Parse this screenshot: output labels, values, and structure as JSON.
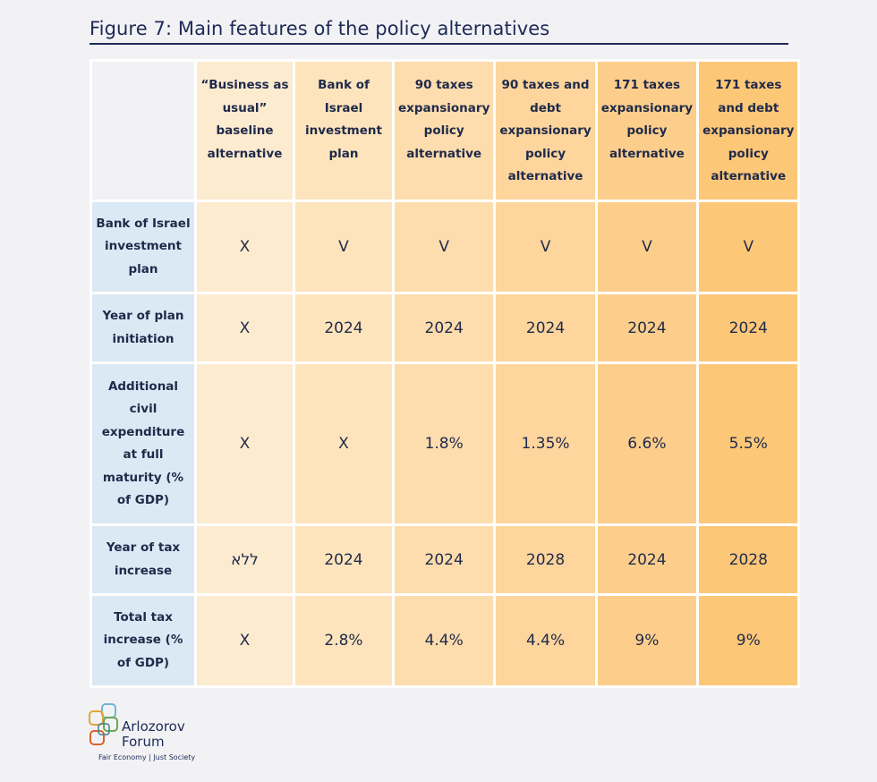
{
  "title": "Figure 7: Main features of the policy alternatives",
  "columns": [
    "“Business as usual” baseline alternative",
    "Bank of Israel investment plan",
    "90 taxes expansionary policy alternative",
    "90 taxes and debt expansionary policy alternative",
    "171 taxes expansionary policy alternative",
    "171 taxes and debt expansionary policy alternative"
  ],
  "rows": [
    {
      "label": "Bank of Israel investment plan",
      "values": [
        "X",
        "V",
        "V",
        "V",
        "V",
        "V"
      ]
    },
    {
      "label": "Year of plan initiation",
      "values": [
        "X",
        "2024",
        "2024",
        "2024",
        "2024",
        "2024"
      ]
    },
    {
      "label": "Additional civil expenditure at full maturity (% of GDP)",
      "values": [
        "X",
        "X",
        "1.8%",
        "1.35%",
        "6.6%",
        "5.5%"
      ]
    },
    {
      "label": "Year of tax increase",
      "values": [
        "ללא",
        "2024",
        "2024",
        "2028",
        "2024",
        "2028"
      ]
    },
    {
      "label": "Total tax increase (% of GDP)",
      "values": [
        "X",
        "2.8%",
        "4.4%",
        "4.4%",
        "9%",
        "9%"
      ]
    }
  ],
  "logo": {
    "name": "Arlozorov Forum",
    "tagline": "Fair Economy | Just Society"
  },
  "colors": {
    "title": "#1d2a57",
    "row_header_bg": "#dbe9f5",
    "column_shades": [
      "#fdebd0",
      "#fde4bc",
      "#fddcad",
      "#fdd59d",
      "#fdce8b",
      "#fdc778"
    ]
  }
}
